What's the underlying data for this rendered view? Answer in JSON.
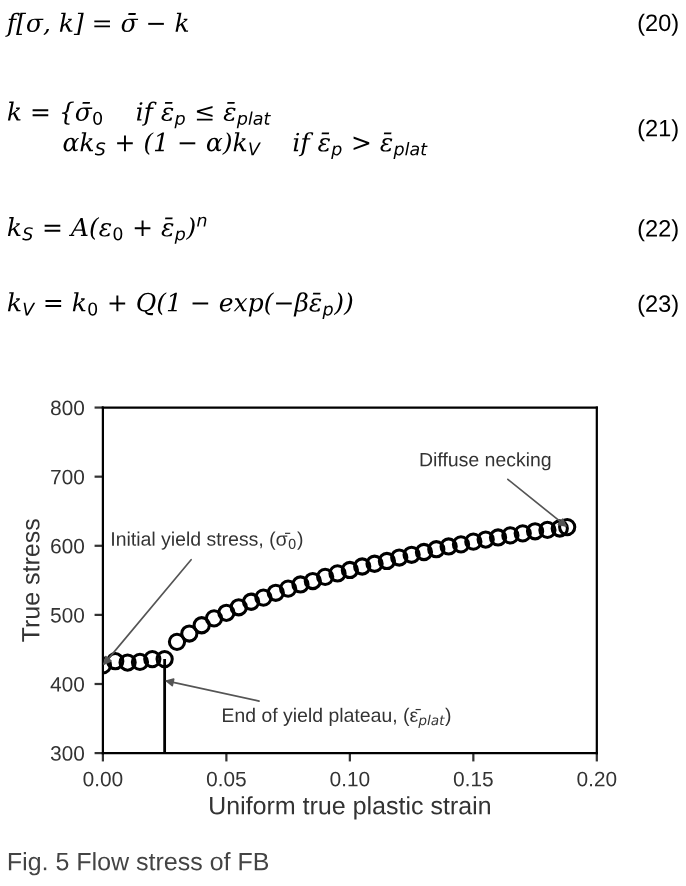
{
  "chart_data": {
    "type": "scatter",
    "xlabel": "Uniform true plastic strain",
    "ylabel": "True stress",
    "x": [
      0,
      0.005,
      0.01,
      0.015,
      0.02,
      0.025,
      0.03,
      0.035,
      0.04,
      0.045,
      0.05,
      0.055,
      0.06,
      0.065,
      0.07,
      0.075,
      0.08,
      0.085,
      0.09,
      0.095,
      0.1,
      0.105,
      0.11,
      0.115,
      0.12,
      0.125,
      0.13,
      0.135,
      0.14,
      0.145,
      0.15,
      0.155,
      0.16,
      0.165,
      0.17,
      0.175,
      0.18,
      0.185,
      0.188
    ],
    "series": [
      {
        "color": "#000000",
        "values": [
          427,
          433,
          431,
          432,
          436,
          436,
          461,
          473,
          485,
          495,
          503,
          511,
          519,
          525,
          532,
          538,
          544,
          549,
          555,
          560,
          565,
          570,
          574,
          578,
          583,
          587,
          591,
          595,
          599,
          602,
          606,
          609,
          612,
          615,
          618,
          621,
          623,
          625,
          627
        ]
      }
    ],
    "marker": "circle",
    "grid": false,
    "xlim": [
      0,
      0.2
    ],
    "ylim": [
      300,
      800
    ],
    "xticks": [
      {
        "value": 0,
        "label": "0.00"
      },
      {
        "value": 0.05,
        "label": "0.05"
      },
      {
        "value": 0.1,
        "label": "0.10"
      },
      {
        "value": 0.15,
        "label": "0.15"
      },
      {
        "value": 0.2,
        "label": "0.20"
      }
    ],
    "yticks": [
      300,
      400,
      500,
      600,
      700,
      800
    ],
    "ref_lines": [
      {
        "axis": "x",
        "value": 0.025,
        "color": "#000000"
      }
    ],
    "annotations": [
      "f[σ, k] = σ̄ − k",
      "k = {σ̄$_{0}$    if ε̄$_{p}$ ≤ ε̄$_{plat}$\n       αk$_{S}$ + (1 − α)k$_{V}$    if ε̄$_{p}$ > ε̄$_{plat}$",
      "k$_{S}$ = A(ε$_{0}$ + ε̄$_{p}$)$^{n}$",
      "k$_{V}$ = k$_{0}$ + Q(1 − exp(−βε̄$_{p}$))",
      "(20)",
      "(21)",
      "(22)",
      "(23)",
      "Fig. 5 Flow stress of FB",
      {
        "text": "Initial yield stress, (σ̄$_{0}$)",
        "x": 0,
        "y": 427
      },
      {
        "text": "End of yield plateau, (ε̄$_{plat}$)",
        "x": 0.025,
        "y": 405
      },
      {
        "text": "Diffuse necking",
        "x": 0.188,
        "y": 627
      }
    ]
  }
}
